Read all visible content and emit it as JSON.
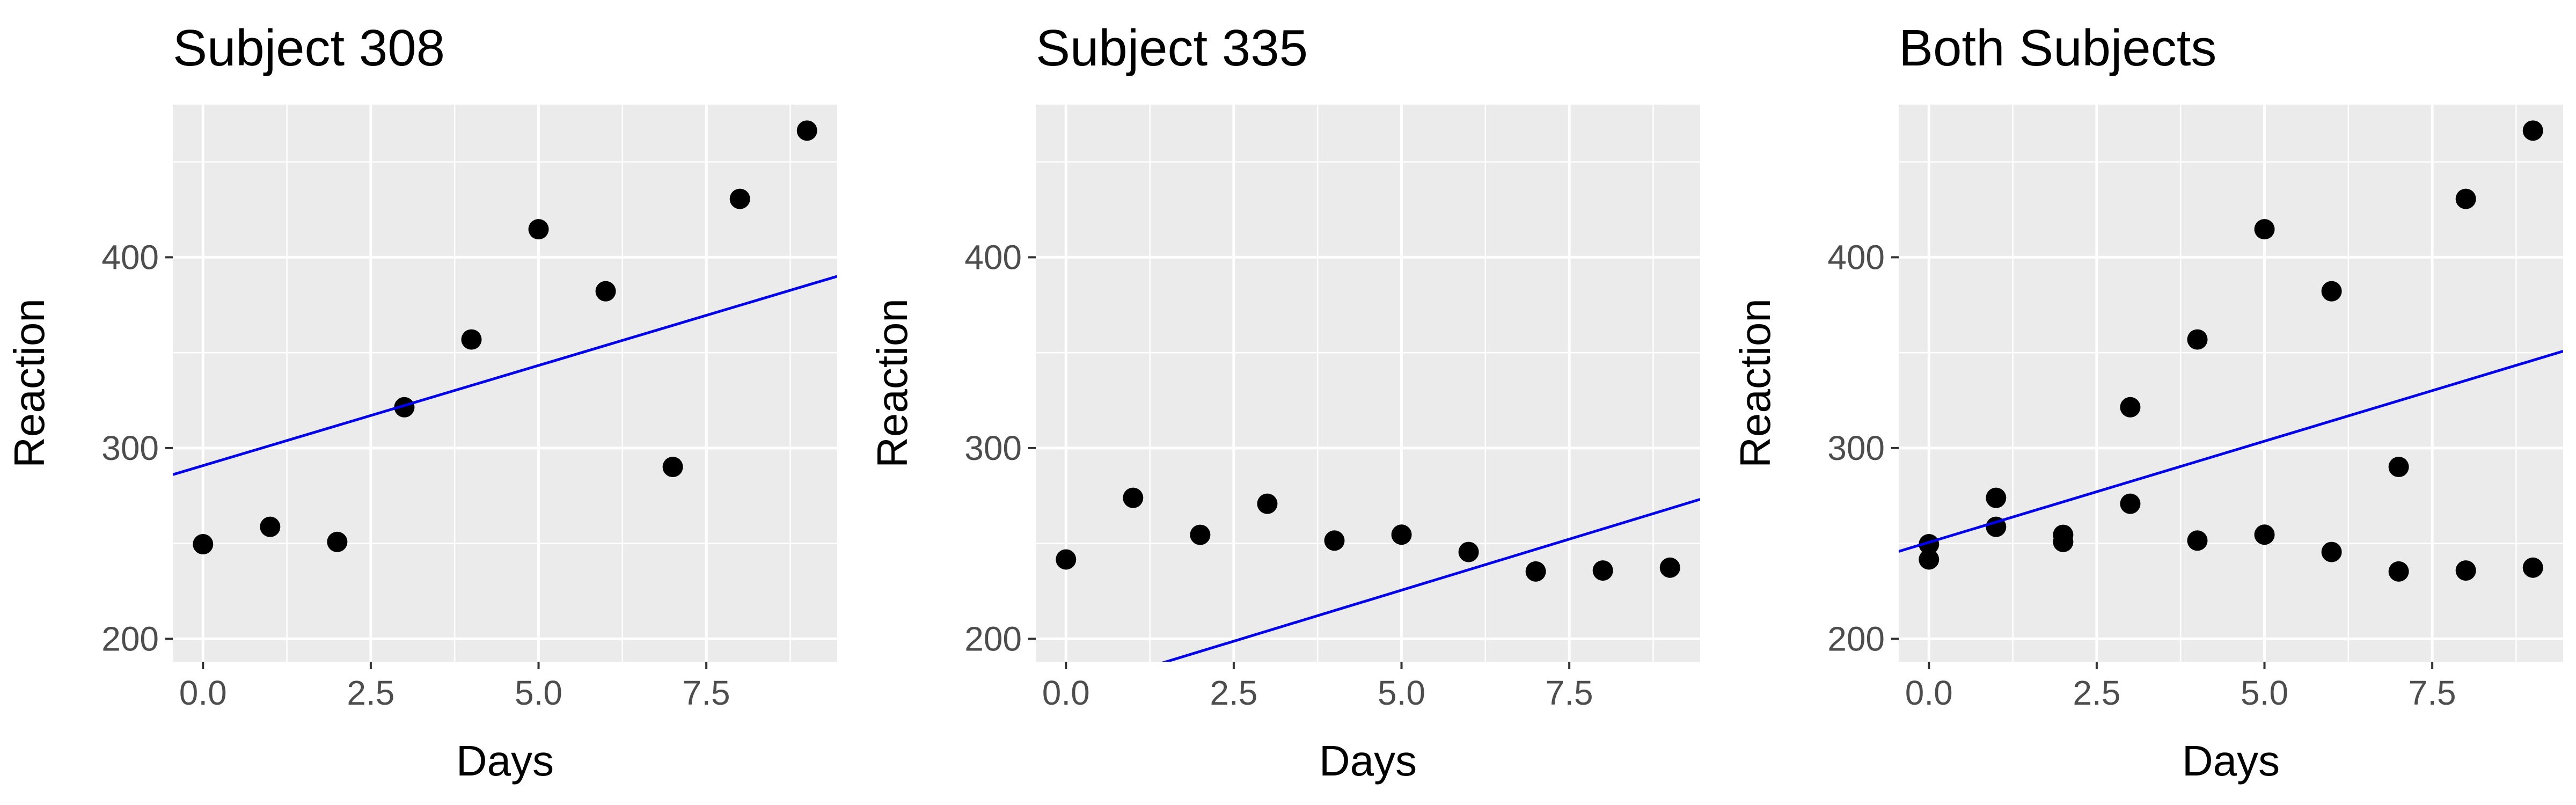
{
  "figure": {
    "line_color": "#0000ee",
    "point_color": "#000000",
    "panel_background": "#ebebeb"
  },
  "chart_data": [
    {
      "type": "scatter",
      "title": "Subject 308",
      "xlabel": "Days",
      "ylabel": "Reaction",
      "xlim": [
        -0.45,
        9.45
      ],
      "ylim": [
        188,
        480
      ],
      "xticks": [
        0,
        2.5,
        5,
        7.5
      ],
      "xtick_labels": [
        "0.0",
        "2.5",
        "5.0",
        "7.5"
      ],
      "yticks": [
        200,
        300,
        400
      ],
      "ytick_labels": [
        "200",
        "300",
        "400"
      ],
      "grid": true,
      "x": [
        0,
        1,
        2,
        3,
        4,
        5,
        6,
        7,
        8,
        9
      ],
      "y": [
        249.6,
        258.7,
        250.8,
        321.4,
        356.9,
        414.7,
        382.2,
        290.1,
        430.6,
        466.4
      ],
      "fit_line": {
        "intercept": 290.8,
        "slope": 10.5
      }
    },
    {
      "type": "scatter",
      "title": "Subject 335",
      "xlabel": "Days",
      "ylabel": "Reaction",
      "xlim": [
        -0.45,
        9.45
      ],
      "ylim": [
        188,
        480
      ],
      "xticks": [
        0,
        2.5,
        5,
        7.5
      ],
      "xtick_labels": [
        "0.0",
        "2.5",
        "5.0",
        "7.5"
      ],
      "yticks": [
        200,
        300,
        400
      ],
      "ytick_labels": [
        "200",
        "300",
        "400"
      ],
      "grid": true,
      "x": [
        0,
        1,
        2,
        3,
        4,
        5,
        6,
        7,
        8,
        9
      ],
      "y": [
        241.6,
        273.9,
        254.5,
        270.8,
        251.5,
        254.6,
        245.5,
        235.3,
        235.8,
        237.3
      ],
      "fit_line": {
        "intercept": 172.0,
        "slope": 10.7
      }
    },
    {
      "type": "scatter",
      "title": "Both Subjects",
      "xlabel": "Days",
      "ylabel": "Reaction",
      "xlim": [
        -0.45,
        9.45
      ],
      "ylim": [
        188,
        480
      ],
      "xticks": [
        0,
        2.5,
        5,
        7.5
      ],
      "xtick_labels": [
        "0.0",
        "2.5",
        "5.0",
        "7.5"
      ],
      "yticks": [
        200,
        300,
        400
      ],
      "ytick_labels": [
        "200",
        "300",
        "400"
      ],
      "grid": true,
      "x": [
        0,
        1,
        2,
        3,
        4,
        5,
        6,
        7,
        8,
        9,
        0,
        1,
        2,
        3,
        4,
        5,
        6,
        7,
        8,
        9
      ],
      "y": [
        249.6,
        258.7,
        250.8,
        321.4,
        356.9,
        414.7,
        382.2,
        290.1,
        430.6,
        466.4,
        241.6,
        273.9,
        254.5,
        270.8,
        251.5,
        254.6,
        245.5,
        235.3,
        235.8,
        237.3
      ],
      "fit_line": {
        "intercept": 250.6,
        "slope": 10.6
      }
    }
  ]
}
